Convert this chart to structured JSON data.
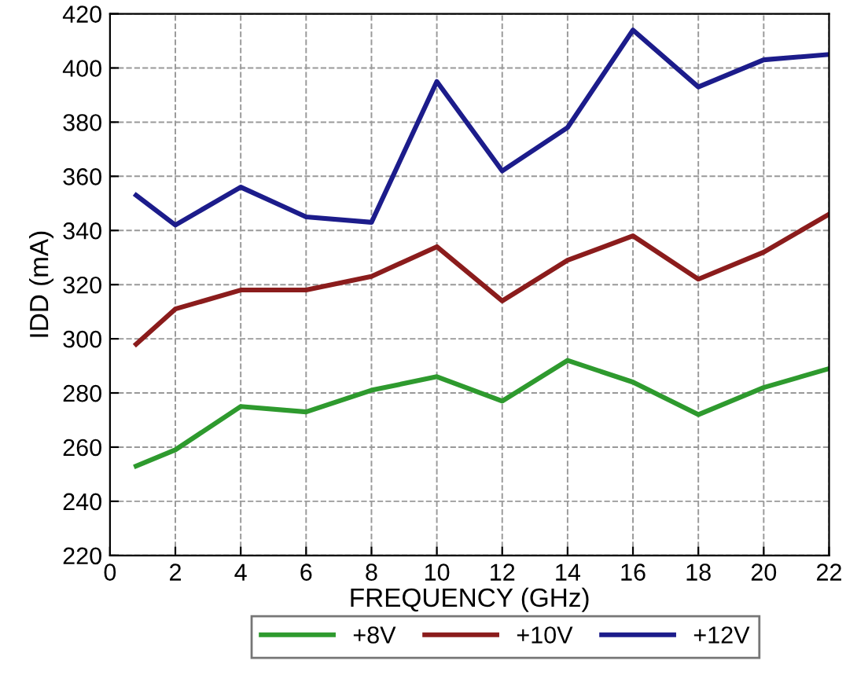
{
  "chart_data": {
    "type": "line",
    "xlabel": "FREQUENCY (GHz)",
    "ylabel": "IDD (mA)",
    "x": [
      0.8,
      2,
      4,
      6,
      8,
      10,
      12,
      14,
      16,
      18,
      20,
      22
    ],
    "series": [
      {
        "name": "+8V",
        "color": "#2e9a2e",
        "values": [
          253,
          259,
          275,
          273,
          281,
          286,
          277,
          292,
          284,
          272,
          282,
          289
        ]
      },
      {
        "name": "+10V",
        "color": "#8b1c1c",
        "values": [
          298,
          311,
          318,
          318,
          323,
          334,
          314,
          329,
          338,
          322,
          332,
          346
        ]
      },
      {
        "name": "+12V",
        "color": "#1c1c8b",
        "values": [
          353,
          342,
          356,
          345,
          343,
          395,
          362,
          378,
          414,
          393,
          403,
          405
        ]
      }
    ],
    "xlim": [
      0,
      22
    ],
    "xticks": [
      0,
      2,
      4,
      6,
      8,
      10,
      12,
      14,
      16,
      18,
      20,
      22
    ],
    "ylim": [
      220,
      420
    ],
    "yticks": [
      220,
      240,
      260,
      280,
      300,
      320,
      340,
      360,
      380,
      400,
      420
    ],
    "grid": true,
    "legend": "bottom",
    "marker": "none",
    "line_style": "solid"
  }
}
